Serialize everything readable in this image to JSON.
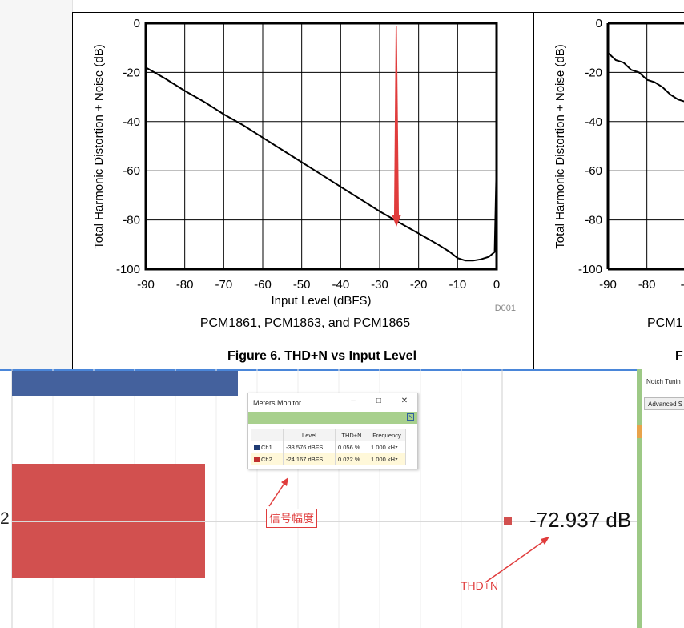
{
  "chart_data": {
    "type": "line",
    "title": "Figure 6. THD+N vs Input Level",
    "subtitle": "PCM1861, PCM1863, and PCM1865",
    "xlabel": "Input Level (dBFS)",
    "ylabel": "Total Harmonic Distortion + Noise (dB)",
    "xlim": [
      -90,
      0
    ],
    "ylim": [
      -100,
      0
    ],
    "xticks": [
      "-90",
      "-80",
      "-70",
      "-60",
      "-50",
      "-40",
      "-30",
      "-20",
      "-10",
      "0"
    ],
    "yticks": [
      "0",
      "-20",
      "-40",
      "-60",
      "-80",
      "-100"
    ],
    "grid": true,
    "code": "D001",
    "series": [
      {
        "x": [
          -90,
          -85,
          -80,
          -75,
          -70,
          -65,
          -60,
          -55,
          -50,
          -45,
          -40,
          -35,
          -30,
          -25,
          -20,
          -15,
          -12,
          -10,
          -8,
          -6,
          -4,
          -2,
          -0.5,
          0
        ],
        "y": [
          -18,
          -22.5,
          -27.5,
          -32,
          -37,
          -41.5,
          -46.5,
          -51.5,
          -56.5,
          -61.5,
          -66.5,
          -71.5,
          -76.5,
          -81,
          -85.5,
          -90,
          -93,
          -95.5,
          -96.5,
          -96.5,
          -96,
          -95,
          -93,
          -56
        ]
      }
    ]
  },
  "chart_data_2": {
    "ylabel": "Total Harmonic Distortion + Noise (dB)",
    "yticks": [
      "0",
      "-20",
      "-40",
      "-60",
      "-80",
      "-100"
    ],
    "xticks": [
      "-90",
      "-80",
      "-7"
    ],
    "subtitle_partial": "PCM1",
    "title_partial": "F",
    "series": [
      {
        "x": [
          -90,
          -88,
          -86,
          -84,
          -82,
          -80,
          -78,
          -76,
          -74,
          -72,
          -70
        ],
        "y": [
          -12,
          -15,
          -16,
          -19,
          -20,
          -23,
          -24,
          -26,
          -29,
          -31,
          -32
        ]
      }
    ]
  },
  "colors": {
    "ch1": "#1f3b73",
    "ch2": "#d2504f",
    "bar_top": "#44619d",
    "annotation": "#e03c3c",
    "divider_green": "#9dc986"
  },
  "app": {
    "channel_label_partial": "2",
    "thd_value": "-72.937 dB",
    "right_panel": {
      "notch_label": "Notch Tunin",
      "advanced_button": "Advanced S"
    },
    "annotations": {
      "signal_amplitude": "信号幅度",
      "thdn": "THD+N"
    },
    "meters_monitor": {
      "title": "Meters Monitor",
      "columns": [
        "",
        "Level",
        "THD+N",
        "Frequency"
      ],
      "rows": [
        {
          "channel": "Ch1",
          "color": "#1f3b73",
          "level": "-33.576 dBFS",
          "thdn": "0.056 %",
          "frequency": "1.000 kHz"
        },
        {
          "channel": "Ch2",
          "color": "#c0302e",
          "level": "-24.167 dBFS",
          "thdn": "0.022 %",
          "frequency": "1.000 kHz"
        }
      ]
    }
  }
}
